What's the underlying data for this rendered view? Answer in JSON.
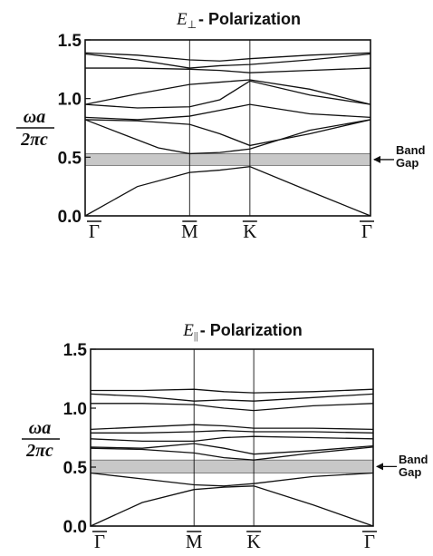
{
  "chart_data": [
    {
      "type": "line",
      "title": {
        "symbol": "E",
        "subscript": "⊥",
        "text": "- Polarization"
      },
      "ylabel": {
        "numerator": "ωa",
        "denominator": "2πc"
      },
      "yticks": [
        "0.0",
        "0.5",
        "1.0",
        "1.5"
      ],
      "ylim": [
        0,
        1.5
      ],
      "xticks": [
        "Γ",
        "M",
        "K",
        "Γ"
      ],
      "x_positions": [
        0,
        1,
        1.5772,
        2.7319
      ],
      "band_gap": {
        "lower": 0.43,
        "upper": 0.53,
        "label_line1": "Band",
        "label_line2": "Gap",
        "color": "#c8c8c8"
      },
      "series": [
        {
          "x": [
            0,
            0.5,
            1,
            1.29,
            1.5772,
            2.15,
            2.7319
          ],
          "values": [
            0,
            0.25,
            0.37,
            0.39,
            0.42,
            0.21,
            0
          ]
        },
        {
          "x": [
            0,
            0.35,
            0.7,
            1,
            1.29,
            1.5772,
            2.15,
            2.7319
          ],
          "values": [
            0.82,
            0.7,
            0.58,
            0.53,
            0.54,
            0.57,
            0.73,
            0.82
          ]
        },
        {
          "x": [
            0,
            0.5,
            1,
            1.29,
            1.5772,
            2.15,
            2.7319
          ],
          "values": [
            0.82,
            0.81,
            0.78,
            0.7,
            0.6,
            0.7,
            0.82
          ]
        },
        {
          "x": [
            0,
            0.5,
            1,
            1.29,
            1.5772,
            2.15,
            2.7319
          ],
          "values": [
            0.84,
            0.82,
            0.85,
            0.9,
            0.95,
            0.87,
            0.84
          ]
        },
        {
          "x": [
            0,
            0.5,
            1,
            1.29,
            1.5772,
            2.15,
            2.7319
          ],
          "values": [
            0.95,
            0.92,
            0.93,
            0.99,
            1.15,
            1.03,
            0.95
          ]
        },
        {
          "x": [
            0,
            0.5,
            1,
            1.29,
            1.5772,
            2.15,
            2.7319
          ],
          "values": [
            0.95,
            1.04,
            1.12,
            1.14,
            1.16,
            1.08,
            0.95
          ]
        },
        {
          "x": [
            0,
            0.5,
            1,
            1.29,
            1.5772,
            2.15,
            2.7319
          ],
          "values": [
            1.26,
            1.26,
            1.25,
            1.24,
            1.22,
            1.24,
            1.26
          ]
        },
        {
          "x": [
            0,
            0.5,
            1,
            1.29,
            1.5772,
            2.15,
            2.7319
          ],
          "values": [
            1.38,
            1.33,
            1.26,
            1.28,
            1.29,
            1.33,
            1.38
          ]
        },
        {
          "x": [
            0,
            0.5,
            1,
            1.29,
            1.5772,
            2.15,
            2.7319
          ],
          "values": [
            1.39,
            1.37,
            1.33,
            1.32,
            1.34,
            1.37,
            1.39
          ]
        }
      ]
    },
    {
      "type": "line",
      "title": {
        "symbol": "E",
        "subscript": "||",
        "text": "- Polarization"
      },
      "ylabel": {
        "numerator": "ωa",
        "denominator": "2πc"
      },
      "yticks": [
        "0.0",
        "0.5",
        "1.0",
        "1.5"
      ],
      "ylim": [
        0,
        1.5
      ],
      "xticks": [
        "Γ",
        "M",
        "K",
        "Γ"
      ],
      "x_positions": [
        0,
        1,
        1.5772,
        2.7319
      ],
      "band_gap": {
        "lower": 0.45,
        "upper": 0.56,
        "label_line1": "Band",
        "label_line2": "Gap",
        "color": "#c8c8c8"
      },
      "series": [
        {
          "x": [
            0,
            0.5,
            1,
            1.29,
            1.5772,
            2.15,
            2.7319
          ],
          "values": [
            0,
            0.2,
            0.31,
            0.33,
            0.34,
            0.18,
            0
          ]
        },
        {
          "x": [
            0,
            0.5,
            1,
            1.29,
            1.5772,
            2.15,
            2.7319
          ],
          "values": [
            0.45,
            0.4,
            0.35,
            0.34,
            0.36,
            0.42,
            0.45
          ]
        },
        {
          "x": [
            0,
            0.5,
            1,
            1.29,
            1.5772,
            2.15,
            2.7319
          ],
          "values": [
            0.66,
            0.65,
            0.62,
            0.58,
            0.56,
            0.62,
            0.67
          ]
        },
        {
          "x": [
            0,
            0.5,
            1,
            1.29,
            1.5772,
            2.15,
            2.7319
          ],
          "values": [
            0.67,
            0.66,
            0.7,
            0.66,
            0.61,
            0.64,
            0.68
          ]
        },
        {
          "x": [
            0,
            0.5,
            1,
            1.29,
            1.5772,
            2.15,
            2.7319
          ],
          "values": [
            0.74,
            0.72,
            0.72,
            0.75,
            0.76,
            0.75,
            0.74
          ]
        },
        {
          "x": [
            0,
            0.5,
            1,
            1.29,
            1.5772,
            2.15,
            2.7319
          ],
          "values": [
            0.79,
            0.79,
            0.8,
            0.81,
            0.8,
            0.8,
            0.79
          ]
        },
        {
          "x": [
            0,
            0.5,
            1,
            1.29,
            1.5772,
            2.15,
            2.7319
          ],
          "values": [
            0.82,
            0.84,
            0.86,
            0.85,
            0.83,
            0.83,
            0.82
          ]
        },
        {
          "x": [
            0,
            0.5,
            1,
            1.29,
            1.5772,
            2.15,
            2.7319
          ],
          "values": [
            1.04,
            1.04,
            1.03,
            1.0,
            0.98,
            1.02,
            1.04
          ]
        },
        {
          "x": [
            0,
            0.5,
            1,
            1.29,
            1.5772,
            2.15,
            2.7319
          ],
          "values": [
            1.12,
            1.1,
            1.06,
            1.07,
            1.06,
            1.09,
            1.12
          ]
        },
        {
          "x": [
            0,
            0.5,
            1,
            1.29,
            1.5772,
            2.15,
            2.7319
          ],
          "values": [
            1.15,
            1.15,
            1.16,
            1.14,
            1.13,
            1.14,
            1.16
          ]
        }
      ]
    }
  ]
}
